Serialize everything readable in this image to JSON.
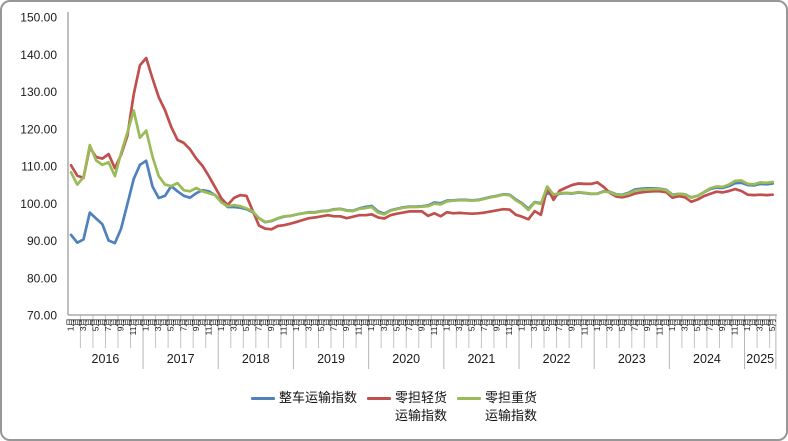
{
  "figure": {
    "border_color": "#979797",
    "background": "#ffffff"
  },
  "y_axis": {
    "labels": [
      "70.00",
      "80.00",
      "90.00",
      "100.00",
      "110.00",
      "120.00",
      "130.00",
      "140.00",
      "150.00"
    ],
    "min": 70,
    "max": 150,
    "step": 10
  },
  "x_axis": {
    "years": [
      "2016",
      "2017",
      "2018",
      "2019",
      "2020",
      "2021",
      "2022",
      "2023",
      "2024",
      "2025"
    ],
    "months_in_last_year": 5,
    "month_label_suffix": "月",
    "labeled_month_numbers": [
      1,
      3,
      5,
      7,
      9,
      11
    ]
  },
  "legend": {
    "items": [
      {
        "label": "整车运输指数",
        "color": "#4F81BD"
      },
      {
        "label": "零担轻货\n运输指数",
        "color": "#C0504D"
      },
      {
        "label": "零担重货\n运输指数",
        "color": "#9BBB59"
      }
    ]
  },
  "chart_data": {
    "type": "line",
    "title": "",
    "xlabel": "",
    "ylabel": "",
    "ylim": [
      70,
      150
    ],
    "grid": "month-ticks-below-axis-only",
    "legend_position": "bottom",
    "x_months": {
      "start": "2016-01",
      "end": "2025-05",
      "count": 113
    },
    "series": [
      {
        "name": "整车运输指数",
        "color": "#4F81BD",
        "values": [
          91.5,
          89.4,
          90.3,
          97.5,
          95.9,
          94.4,
          90.0,
          89.3,
          93.2,
          99.8,
          106.5,
          110.3,
          111.4,
          104.5,
          101.4,
          102.0,
          104.6,
          103.2,
          102.0,
          101.5,
          102.7,
          103.5,
          103.2,
          102.2,
          100.5,
          99.0,
          99.0,
          98.8,
          98.4,
          97.6,
          96.0,
          94.9,
          95.2,
          95.9,
          96.4,
          96.6,
          97.0,
          97.3,
          97.6,
          97.6,
          97.9,
          98.0,
          98.4,
          98.5,
          98.1,
          98.0,
          98.6,
          99.0,
          99.3,
          97.8,
          97.2,
          98.1,
          98.5,
          98.9,
          99.1,
          99.1,
          99.2,
          99.4,
          100.2,
          100.0,
          100.7,
          100.8,
          100.9,
          100.9,
          100.8,
          100.9,
          101.3,
          101.7,
          102.0,
          102.4,
          102.3,
          101.0,
          100.0,
          98.5,
          100.3,
          100.0,
          102.8,
          102.0,
          102.6,
          102.7,
          102.6,
          102.9,
          102.7,
          102.5,
          102.6,
          103.2,
          103.1,
          102.4,
          102.3,
          102.8,
          103.7,
          103.9,
          104.0,
          104.0,
          103.9,
          103.6,
          102.3,
          102.5,
          102.4,
          101.6,
          102.0,
          102.9,
          103.8,
          104.2,
          104.1,
          104.6,
          105.4,
          105.5,
          104.9,
          104.8,
          105.2,
          105.1,
          105.3
        ]
      },
      {
        "name": "零担轻货运输指数",
        "color": "#C0504D",
        "values": [
          110.2,
          107.4,
          106.8,
          115.0,
          112.4,
          112.0,
          113.2,
          109.4,
          113.0,
          118.1,
          129.2,
          137.0,
          139.0,
          133.5,
          128.5,
          125.0,
          120.5,
          117.0,
          116.2,
          114.5,
          112.0,
          110.0,
          107.3,
          104.3,
          101.3,
          99.5,
          101.4,
          102.2,
          102.0,
          98.0,
          94.0,
          93.2,
          93.0,
          93.9,
          94.1,
          94.5,
          95.0,
          95.5,
          96.0,
          96.2,
          96.5,
          96.8,
          96.5,
          96.5,
          96.0,
          96.4,
          96.8,
          96.8,
          97.0,
          96.2,
          95.9,
          96.8,
          97.2,
          97.5,
          97.8,
          97.8,
          97.8,
          96.6,
          97.3,
          96.5,
          97.6,
          97.3,
          97.4,
          97.3,
          97.2,
          97.3,
          97.5,
          97.8,
          98.1,
          98.4,
          98.3,
          96.9,
          96.4,
          95.7,
          97.9,
          96.9,
          104.2,
          100.9,
          103.4,
          104.2,
          104.9,
          105.3,
          105.2,
          105.2,
          105.6,
          104.4,
          102.8,
          101.8,
          101.6,
          102.0,
          102.6,
          102.9,
          103.1,
          103.2,
          103.2,
          103.0,
          101.5,
          101.9,
          101.6,
          100.4,
          101.0,
          101.9,
          102.5,
          103.1,
          102.9,
          103.3,
          103.8,
          103.3,
          102.3,
          102.2,
          102.3,
          102.2,
          102.3
        ]
      },
      {
        "name": "零担重货运输指数",
        "color": "#9BBB59",
        "values": [
          108.3,
          105.0,
          107.0,
          115.6,
          111.5,
          110.3,
          111.0,
          107.3,
          113.5,
          119.0,
          124.9,
          117.6,
          119.5,
          112.5,
          107.3,
          105.0,
          104.6,
          105.4,
          103.5,
          103.2,
          104.1,
          103.2,
          102.7,
          102.2,
          100.2,
          99.2,
          99.5,
          99.2,
          98.6,
          97.8,
          96.0,
          95.0,
          95.3,
          96.0,
          96.5,
          96.6,
          97.0,
          97.3,
          97.5,
          97.5,
          97.8,
          97.9,
          98.3,
          98.4,
          98.0,
          97.9,
          98.5,
          98.7,
          99.0,
          97.5,
          97.0,
          98.0,
          98.4,
          98.8,
          99.0,
          99.0,
          99.1,
          99.2,
          99.9,
          99.7,
          100.5,
          100.7,
          100.8,
          100.8,
          100.7,
          100.8,
          101.2,
          101.6,
          101.9,
          102.3,
          102.2,
          100.8,
          99.8,
          98.2,
          100.2,
          99.8,
          104.5,
          102.3,
          102.7,
          102.8,
          102.7,
          103.0,
          102.8,
          102.6,
          102.5,
          103.1,
          103.0,
          102.3,
          102.2,
          102.6,
          103.4,
          103.6,
          103.7,
          103.8,
          103.8,
          103.5,
          102.2,
          102.5,
          102.4,
          101.5,
          102.0,
          103.0,
          104.0,
          104.5,
          104.4,
          105.0,
          106.0,
          106.1,
          105.2,
          105.1,
          105.6,
          105.5,
          105.7
        ]
      }
    ]
  }
}
